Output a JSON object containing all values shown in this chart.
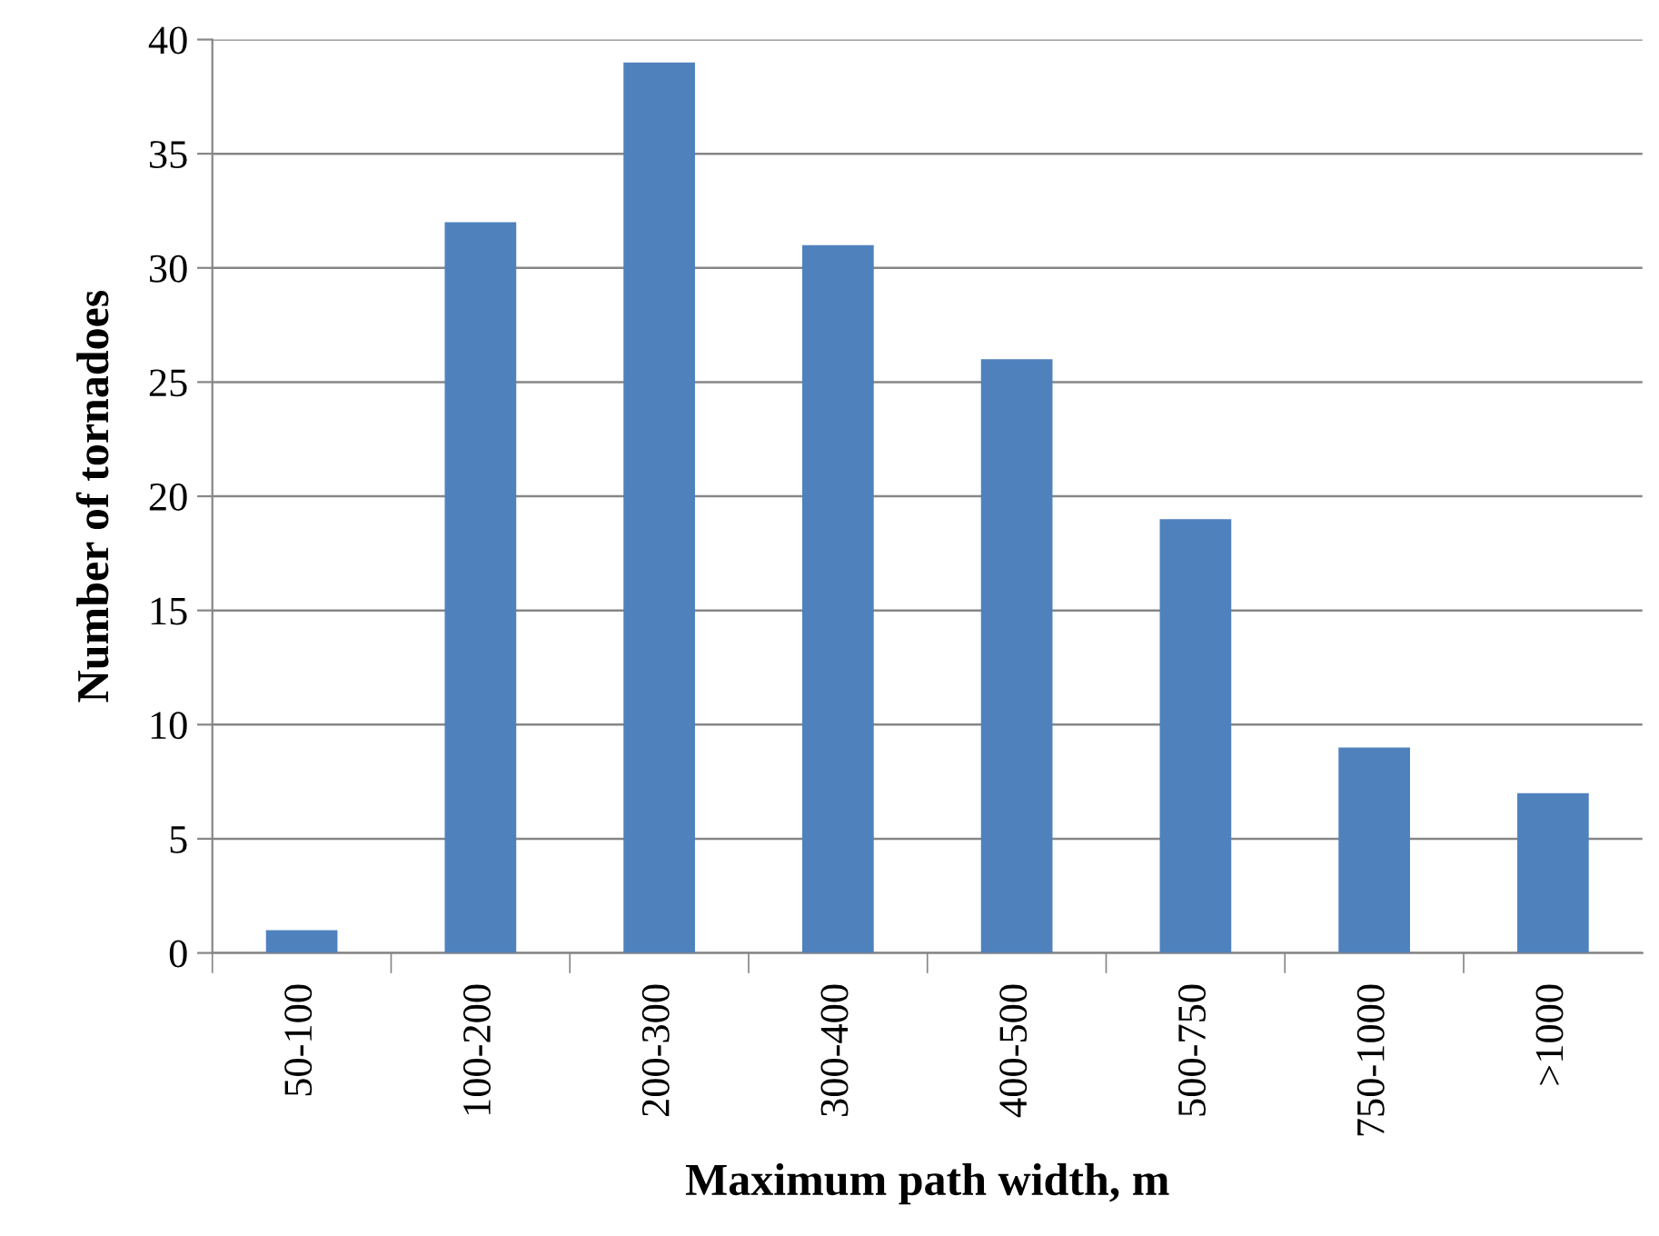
{
  "chart_data": {
    "type": "bar",
    "xlabel": "Maximum path width, m",
    "ylabel": "Number of tornadoes",
    "categories": [
      "50-100",
      "100-200",
      "200-300",
      "300-400",
      "400-500",
      "500-750",
      "750-1000",
      ">1000"
    ],
    "values": [
      1,
      32,
      39,
      31,
      26,
      19,
      9,
      7
    ],
    "color": "#4f81bd",
    "ylim": [
      0,
      40
    ],
    "yticks": [
      0,
      5,
      10,
      15,
      20,
      25,
      30,
      35,
      40
    ],
    "grid": "y"
  }
}
